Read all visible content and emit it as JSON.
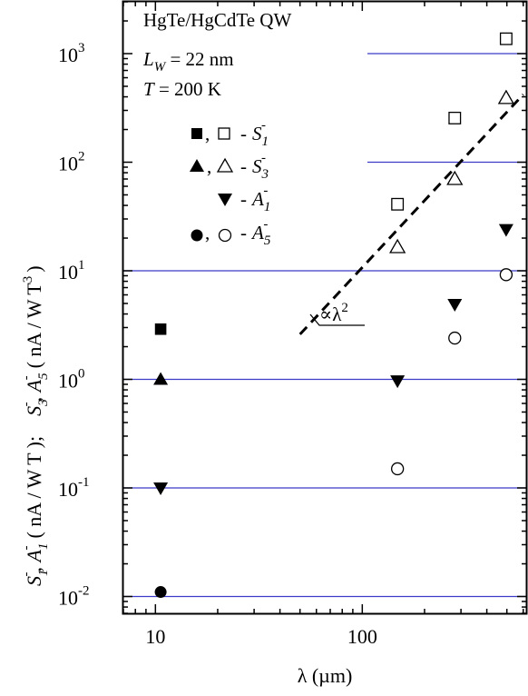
{
  "chart_data": {
    "type": "scatter",
    "x_scale": "log",
    "y_scale": "log",
    "xlim": [
      7,
      620
    ],
    "ylim": [
      0.007,
      3000
    ],
    "x_ticks": [
      {
        "value": 10,
        "label": "10"
      },
      {
        "value": 100,
        "label": "100"
      }
    ],
    "y_ticks": [
      {
        "value": 0.01,
        "base": "10",
        "exp": "-2"
      },
      {
        "value": 0.1,
        "base": "10",
        "exp": "-1"
      },
      {
        "value": 1,
        "base": "10",
        "exp": "0"
      },
      {
        "value": 10,
        "base": "10",
        "exp": "1"
      },
      {
        "value": 100,
        "base": "10",
        "exp": "2"
      },
      {
        "value": 1000,
        "base": "10",
        "exp": "3"
      }
    ],
    "grid": "horizontal at decades",
    "grid_color": "#3b3bc8",
    "xlabel": "λ (µm)",
    "ylabel": {
      "lower": {
        "s": "S",
        "s_sub": "1",
        "comma": ", ",
        "a": "A",
        "a_sub": "1",
        "minus": "-",
        "units": "( nA / W T );"
      },
      "upper": {
        "s": "S",
        "s_sub": "3",
        "comma": ", ",
        "a": "A",
        "a_sub": "5",
        "minus": "-",
        "units": "( nA / W T",
        "units_sup": "3",
        "close": ")"
      }
    },
    "annotations": {
      "line1": "HgTe/HgCdTe QW",
      "line2_var": "L",
      "line2_sub": "W",
      "line2_val": " = 22 nm",
      "line3_var": "T",
      "line3_val": " = 200 K"
    },
    "legend": {
      "placement": "upper-left",
      "entries": [
        {
          "markers": [
            "filled-square",
            "open-square"
          ],
          "sep": ",",
          "dash": "-",
          "sym": "S",
          "sub": "1",
          "sup": "-"
        },
        {
          "markers": [
            "filled-triangle-up",
            "open-triangle-up"
          ],
          "sep": ",",
          "dash": "-",
          "sym": "S",
          "sub": "3",
          "sup": "-"
        },
        {
          "markers": [
            "filled-triangle-down"
          ],
          "sep": "",
          "dash": "-",
          "sym": "A",
          "sub": "1",
          "sup": "-"
        },
        {
          "markers": [
            "filled-circle",
            "open-circle"
          ],
          "sep": ",",
          "dash": "-",
          "sym": "A",
          "sub": "5",
          "sup": "-"
        }
      ]
    },
    "fit_line": {
      "style": "dashed",
      "label_prefix": "∝λ",
      "label_exp": "2",
      "x": [
        50,
        600
      ],
      "y": [
        2.6,
        420
      ]
    },
    "series": [
      {
        "name": "S1-",
        "marker": "filled-square",
        "x": [
          10.6
        ],
        "y": [
          2.9
        ]
      },
      {
        "name": "S3-",
        "marker": "filled-triangle-up",
        "x": [
          10.6
        ],
        "y": [
          1.0
        ]
      },
      {
        "name": "A1-",
        "marker": "filled-triangle-down",
        "x": [
          10.6,
          148,
          280,
          496
        ],
        "y": [
          0.1,
          0.97,
          4.9,
          24
        ]
      },
      {
        "name": "A5-",
        "marker": "filled-circle",
        "x": [
          10.6
        ],
        "y": [
          0.011
        ]
      },
      {
        "name": "S1-",
        "marker": "open-square",
        "x": [
          148,
          280,
          496
        ],
        "y": [
          41,
          255,
          1370
        ]
      },
      {
        "name": "S3-",
        "marker": "open-triangle-up",
        "x": [
          148,
          280,
          496
        ],
        "y": [
          16.5,
          70,
          390
        ]
      },
      {
        "name": "A5-",
        "marker": "open-circle",
        "x": [
          148,
          280,
          496
        ],
        "y": [
          0.15,
          2.4,
          9.2
        ]
      }
    ]
  }
}
